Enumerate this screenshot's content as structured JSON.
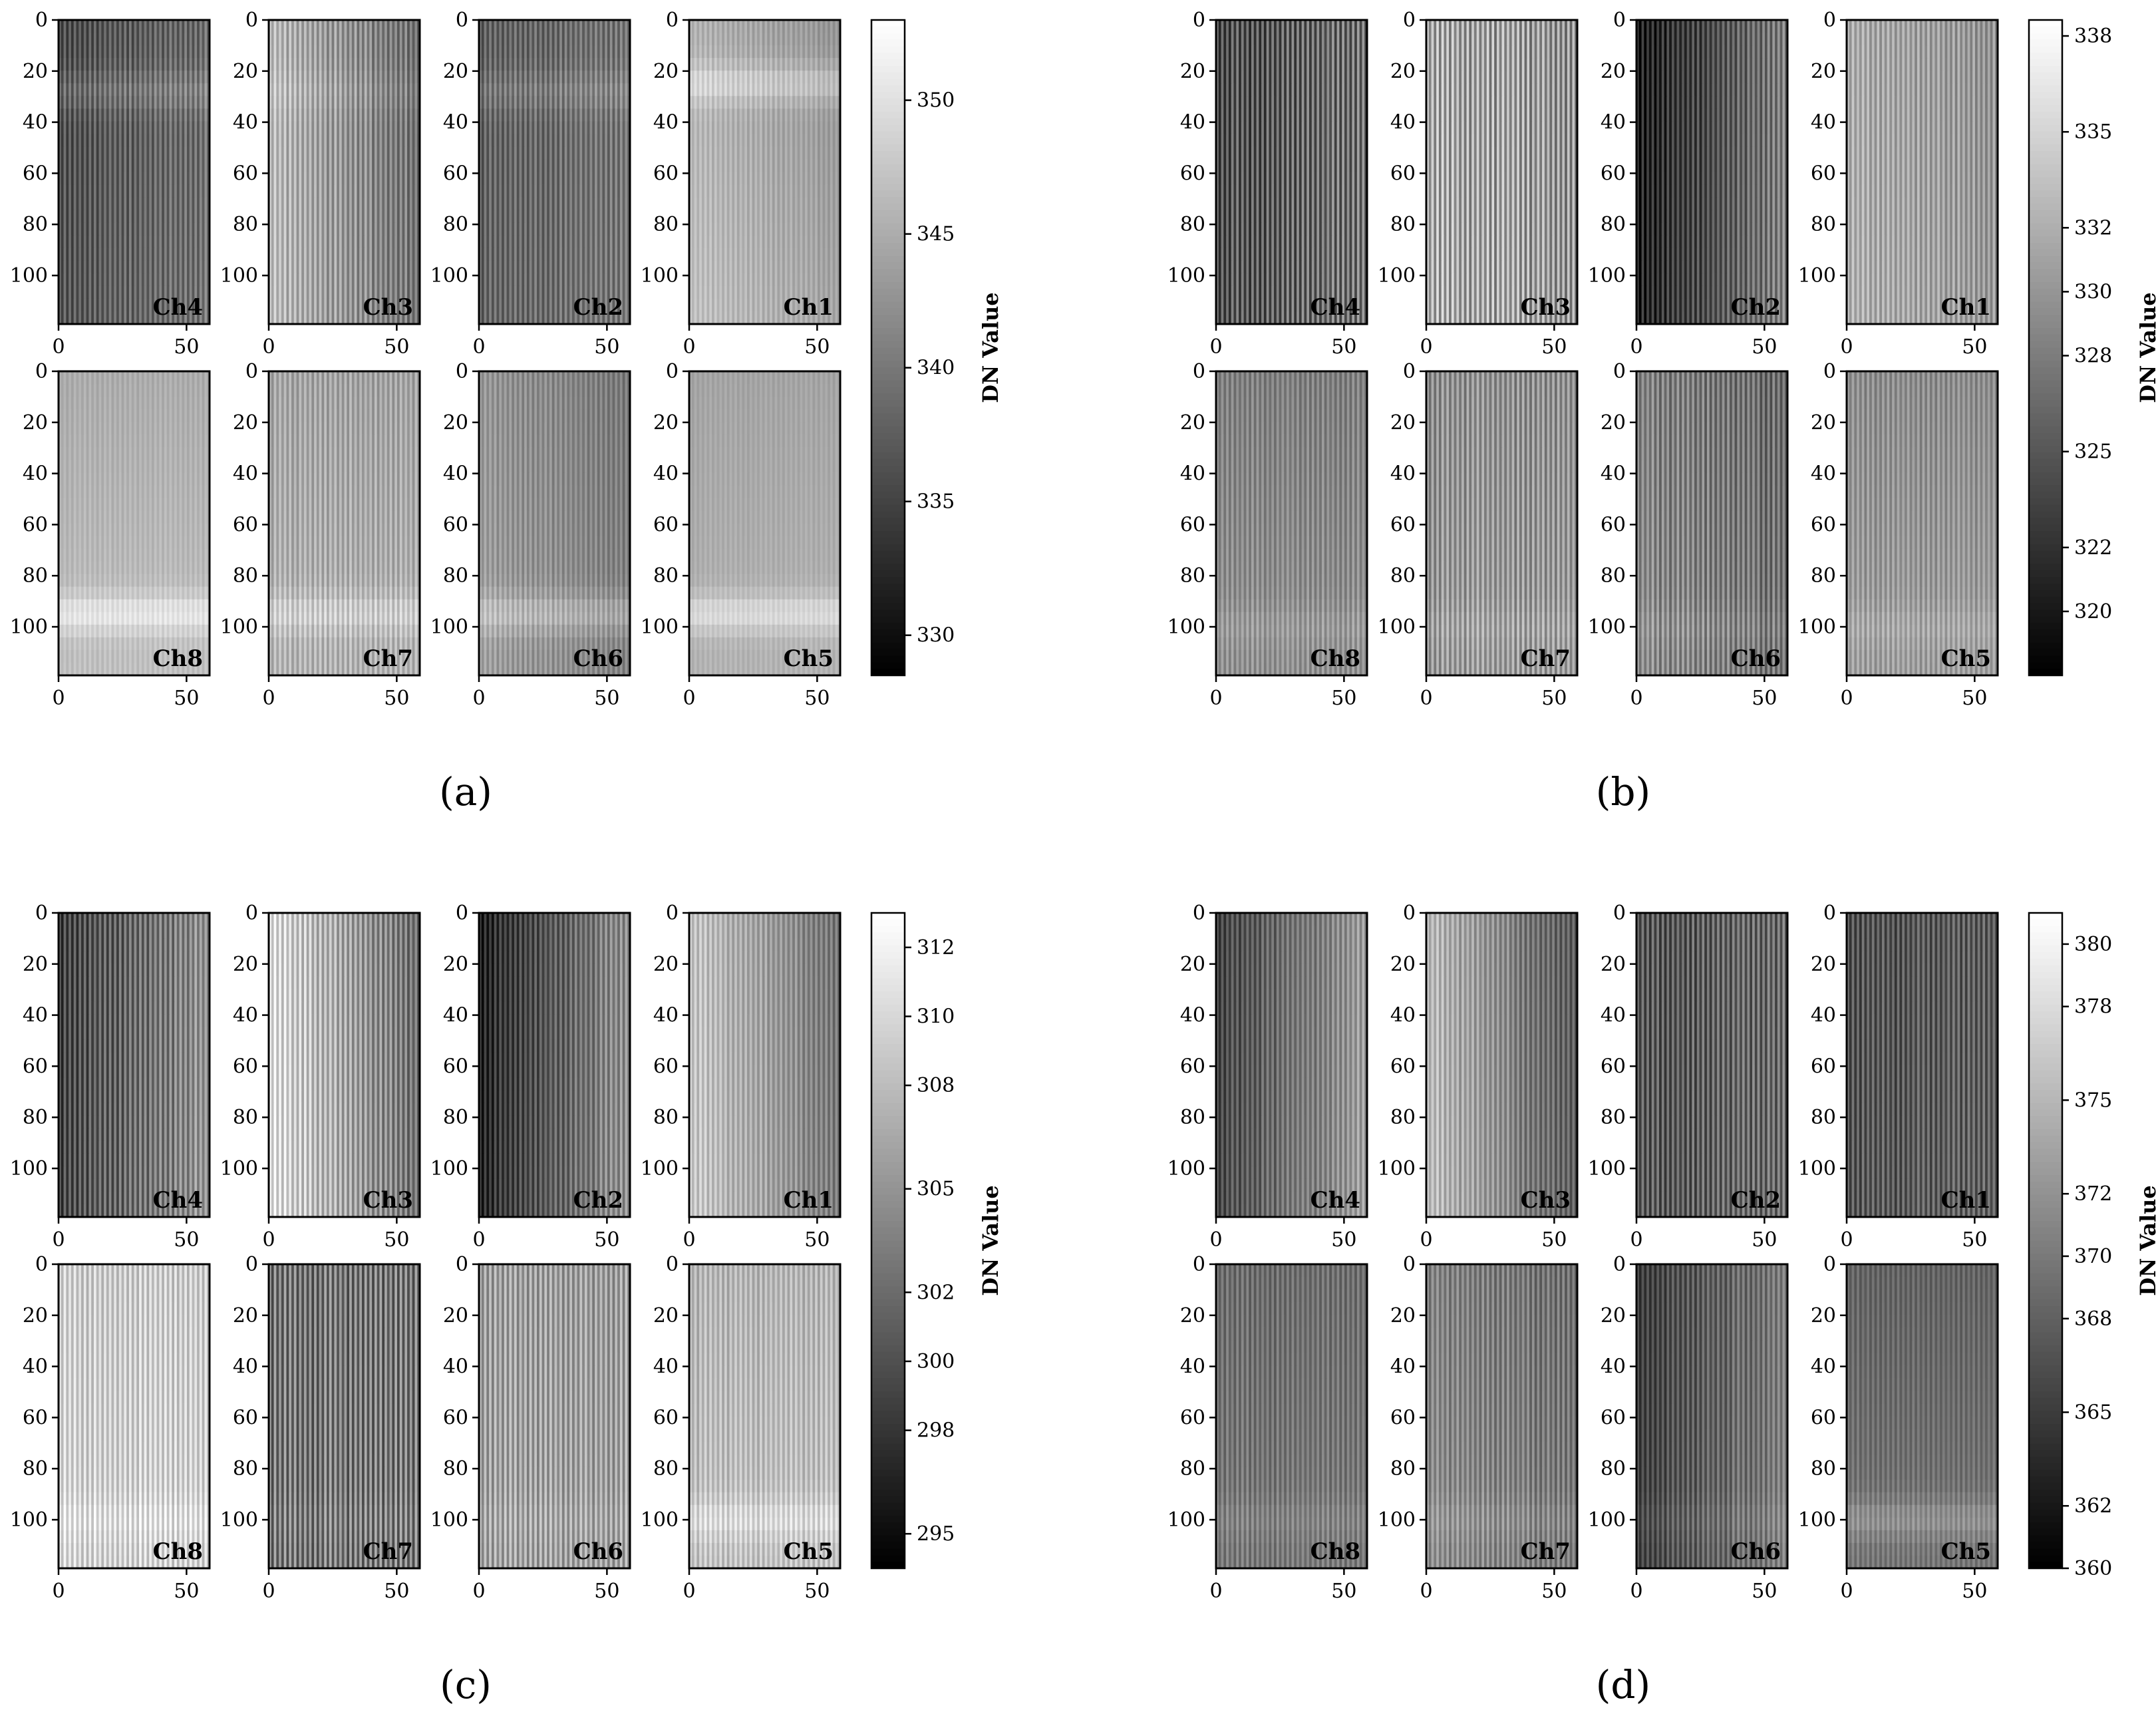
{
  "chart_data": [
    {
      "type": "heatmap",
      "panel_label": "(a)",
      "colorbar": {
        "label": "DN Value",
        "min": 328.5,
        "max": 353,
        "ticks": [
          330,
          335,
          340,
          345,
          350
        ]
      },
      "xlim": [
        0,
        59
      ],
      "ylim": [
        119,
        0
      ],
      "xticks": [
        0,
        50
      ],
      "yticks": [
        0,
        20,
        40,
        60,
        80,
        100
      ],
      "channels": [
        {
          "name": "Ch4",
          "mean": 338.0,
          "stripe": 3.0,
          "grad_x": 1.5,
          "grad_y": 1.0,
          "band_y": 28,
          "band_amp": 2.5
        },
        {
          "name": "Ch3",
          "mean": 343.0,
          "stripe": 3.5,
          "grad_x": -3.5,
          "grad_y": 0.5,
          "band_y": 28,
          "band_amp": 1.0
        },
        {
          "name": "Ch2",
          "mean": 339.0,
          "stripe": 3.0,
          "grad_x": 1.0,
          "grad_y": 0.5,
          "band_y": 28,
          "band_amp": 2.0
        },
        {
          "name": "Ch1",
          "mean": 345.0,
          "stripe": 1.5,
          "grad_x": -1.5,
          "grad_y": 1.5,
          "band_y": 25,
          "band_amp": 3.5
        },
        {
          "name": "Ch8",
          "mean": 346.0,
          "stripe": 1.0,
          "grad_x": 0.0,
          "grad_y": 2.0,
          "band_y": 95,
          "band_amp": 4.0
        },
        {
          "name": "Ch7",
          "mean": 345.0,
          "stripe": 2.5,
          "grad_x": 0.0,
          "grad_y": 1.5,
          "band_y": 95,
          "band_amp": 3.0
        },
        {
          "name": "Ch6",
          "mean": 342.0,
          "stripe": 2.0,
          "grad_x": -1.5,
          "grad_y": 1.0,
          "band_y": 95,
          "band_amp": 3.5
        },
        {
          "name": "Ch5",
          "mean": 345.0,
          "stripe": 0.8,
          "grad_x": 0.0,
          "grad_y": 1.5,
          "band_y": 95,
          "band_amp": 4.0
        }
      ]
    },
    {
      "type": "heatmap",
      "panel_label": "(b)",
      "colorbar": {
        "label": "DN Value",
        "min": 318,
        "max": 338.5,
        "ticks": [
          320,
          322,
          325,
          328,
          330,
          332,
          335,
          338
        ]
      },
      "xlim": [
        0,
        59
      ],
      "ylim": [
        119,
        0
      ],
      "xticks": [
        0,
        50
      ],
      "yticks": [
        0,
        20,
        40,
        60,
        80,
        100
      ],
      "channels": [
        {
          "name": "Ch4",
          "mean": 326.0,
          "stripe": 4.0,
          "grad_x": 1.5,
          "grad_y": 0.5,
          "band_y": 0,
          "band_amp": 0
        },
        {
          "name": "Ch3",
          "mean": 331.0,
          "stripe": 4.5,
          "grad_x": -1.0,
          "grad_y": 0.5,
          "band_y": 0,
          "band_amp": 0
        },
        {
          "name": "Ch2",
          "mean": 324.5,
          "stripe": 3.0,
          "grad_x": 4.0,
          "grad_y": 0.5,
          "band_y": 0,
          "band_amp": 0
        },
        {
          "name": "Ch1",
          "mean": 331.0,
          "stripe": 2.5,
          "grad_x": -1.0,
          "grad_y": 0.5,
          "band_y": 0,
          "band_amp": 0
        },
        {
          "name": "Ch8",
          "mean": 329.0,
          "stripe": 2.0,
          "grad_x": 0.0,
          "grad_y": 1.5,
          "band_y": 100,
          "band_amp": 1.0
        },
        {
          "name": "Ch7",
          "mean": 330.0,
          "stripe": 3.0,
          "grad_x": 0.0,
          "grad_y": 1.0,
          "band_y": 100,
          "band_amp": 0.8
        },
        {
          "name": "Ch6",
          "mean": 328.0,
          "stripe": 3.0,
          "grad_x": -1.0,
          "grad_y": 1.0,
          "band_y": 100,
          "band_amp": 0.8
        },
        {
          "name": "Ch5",
          "mean": 330.0,
          "stripe": 2.0,
          "grad_x": 0.0,
          "grad_y": 1.5,
          "band_y": 100,
          "band_amp": 1.0
        }
      ]
    },
    {
      "type": "heatmap",
      "panel_label": "(c)",
      "colorbar": {
        "label": "DN Value",
        "min": 294,
        "max": 313,
        "ticks": [
          295,
          298,
          300,
          302,
          305,
          308,
          310,
          312
        ]
      },
      "xlim": [
        0,
        59
      ],
      "ylim": [
        119,
        0
      ],
      "xticks": [
        0,
        50
      ],
      "yticks": [
        0,
        20,
        40,
        60,
        80,
        100
      ],
      "channels": [
        {
          "name": "Ch4",
          "mean": 302.0,
          "stripe": 3.0,
          "grad_x": 3.0,
          "grad_y": 0.5,
          "band_y": 0,
          "band_amp": 0
        },
        {
          "name": "Ch3",
          "mean": 306.5,
          "stripe": 3.0,
          "grad_x": -4.0,
          "grad_y": 0.3,
          "band_y": 0,
          "band_amp": 0
        },
        {
          "name": "Ch2",
          "mean": 301.0,
          "stripe": 2.5,
          "grad_x": 4.0,
          "grad_y": 0.5,
          "band_y": 0,
          "band_amp": 0
        },
        {
          "name": "Ch1",
          "mean": 306.0,
          "stripe": 2.0,
          "grad_x": -3.0,
          "grad_y": 0.5,
          "band_y": 0,
          "band_amp": 0
        },
        {
          "name": "Ch8",
          "mean": 309.5,
          "stripe": 2.5,
          "grad_x": 0.0,
          "grad_y": 0.5,
          "band_y": 100,
          "band_amp": 1.0
        },
        {
          "name": "Ch7",
          "mean": 303.0,
          "stripe": 4.0,
          "grad_x": 0.0,
          "grad_y": 0.3,
          "band_y": 100,
          "band_amp": 0.5
        },
        {
          "name": "Ch6",
          "mean": 306.0,
          "stripe": 3.0,
          "grad_x": 0.0,
          "grad_y": 0.3,
          "band_y": 100,
          "band_amp": 0.5
        },
        {
          "name": "Ch5",
          "mean": 308.0,
          "stripe": 2.0,
          "grad_x": 0.0,
          "grad_y": 1.0,
          "band_y": 100,
          "band_amp": 2.0
        }
      ]
    },
    {
      "type": "heatmap",
      "panel_label": "(d)",
      "colorbar": {
        "label": "DN Value",
        "min": 360,
        "max": 381,
        "ticks": [
          360,
          362,
          365,
          368,
          370,
          372,
          375,
          378,
          380
        ]
      },
      "xlim": [
        0,
        59
      ],
      "ylim": [
        119,
        0
      ],
      "xticks": [
        0,
        50
      ],
      "yticks": [
        0,
        20,
        40,
        60,
        80,
        100
      ],
      "channels": [
        {
          "name": "Ch4",
          "mean": 369.5,
          "stripe": 2.5,
          "grad_x": 3.5,
          "grad_y": 0.5,
          "band_y": 0,
          "band_amp": 0
        },
        {
          "name": "Ch3",
          "mean": 371.5,
          "stripe": 2.5,
          "grad_x": -4.0,
          "grad_y": 0.5,
          "band_y": 0,
          "band_amp": 0
        },
        {
          "name": "Ch2",
          "mean": 368.0,
          "stripe": 3.5,
          "grad_x": 1.0,
          "grad_y": 0.3,
          "band_y": 0,
          "band_amp": 0
        },
        {
          "name": "Ch1",
          "mean": 367.5,
          "stripe": 3.0,
          "grad_x": 0.5,
          "grad_y": 0.5,
          "band_y": 0,
          "band_amp": 0
        },
        {
          "name": "Ch8",
          "mean": 369.5,
          "stripe": 2.0,
          "grad_x": 0.0,
          "grad_y": 1.0,
          "band_y": 100,
          "band_amp": 1.0
        },
        {
          "name": "Ch7",
          "mean": 370.5,
          "stripe": 2.5,
          "grad_x": -1.0,
          "grad_y": 1.0,
          "band_y": 100,
          "band_amp": 1.0
        },
        {
          "name": "Ch6",
          "mean": 368.0,
          "stripe": 2.5,
          "grad_x": 2.5,
          "grad_y": 0.5,
          "band_y": 100,
          "band_amp": 0.8
        },
        {
          "name": "Ch5",
          "mean": 369.0,
          "stripe": 1.5,
          "grad_x": 0.0,
          "grad_y": 1.5,
          "band_y": 100,
          "band_amp": 2.5
        }
      ]
    }
  ]
}
